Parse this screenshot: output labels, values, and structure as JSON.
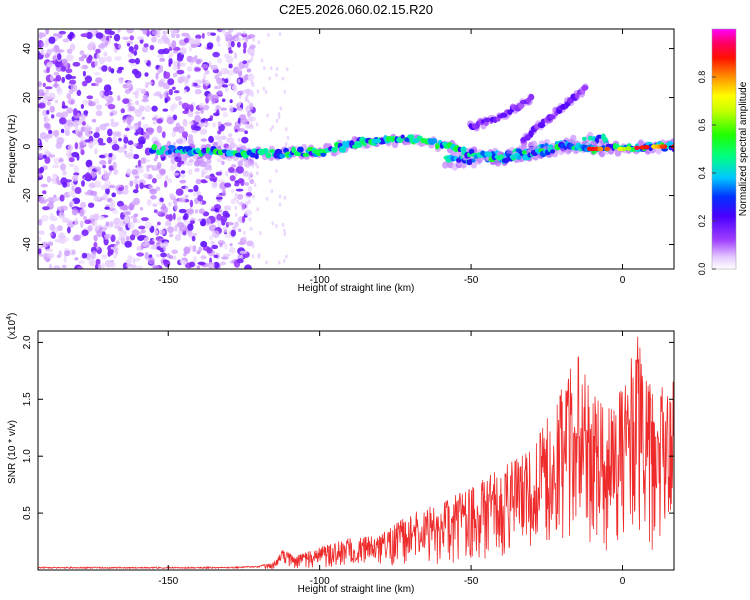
{
  "title": "C2E5.2026.060.02.15.R20",
  "chart_data": [
    {
      "type": "heatmap",
      "name": "spectrogram",
      "xlabel": "Height of straight line (km)",
      "ylabel": "Frequency (Hz)",
      "xlim": [
        -193,
        17
      ],
      "ylim": [
        -50,
        48
      ],
      "xticks": [
        -150,
        -100,
        -50,
        0
      ],
      "yticks": [
        -40,
        -20,
        0,
        20,
        40
      ],
      "xtick_labels": [
        "-150",
        "-100",
        "-50",
        "0"
      ],
      "ytick_labels": [
        "-40",
        "-20",
        "0",
        "20",
        "40"
      ],
      "features": {
        "noise_region_x": [
          -193,
          -130
        ],
        "main_trace": {
          "x": [
            -155,
            -140,
            -120,
            -100,
            -85,
            -70,
            -60,
            -50,
            -40,
            -30,
            -20,
            -10,
            0,
            10,
            17
          ],
          "y": [
            -1,
            -2,
            -3,
            -2,
            2,
            3,
            1,
            -3,
            -5,
            -3,
            0,
            -1,
            -1,
            0,
            0
          ]
        },
        "secondary_trace": {
          "x": [
            -58,
            -50,
            -40,
            -30,
            -20,
            -10,
            -5
          ],
          "y": [
            -6,
            -5,
            -4,
            -2,
            0,
            2,
            3
          ]
        },
        "upper_trace_1": {
          "x": [
            -50,
            -40,
            -35,
            -30
          ],
          "y": [
            8,
            12,
            16,
            20
          ]
        },
        "upper_trace_2": {
          "x": [
            -33,
            -28,
            -20,
            -12
          ],
          "y": [
            2,
            8,
            16,
            24
          ]
        }
      }
    },
    {
      "type": "colorbar",
      "name": "colorbar",
      "label": "Normalized spectral amplitude",
      "range": [
        0,
        1
      ],
      "ticks": [
        0.0,
        0.2,
        0.4,
        0.6,
        0.8
      ],
      "tick_labels": [
        "0.0",
        "0.2",
        "0.4",
        "0.6",
        "0.8"
      ],
      "colormap": [
        "#ffffff",
        "#e4c8ff",
        "#8800ff",
        "#0000ff",
        "#00e0ff",
        "#00ff00",
        "#ffff00",
        "#ff8800",
        "#ff0000",
        "#ff00ff"
      ]
    },
    {
      "type": "line",
      "name": "snr",
      "xlabel": "Height of straight line (km)",
      "ylabel": "SNR (10 * v/v)",
      "multiplier": "(x10",
      "multiplier_exp": "4",
      "multiplier_close": ")",
      "xlim": [
        -193,
        17
      ],
      "ylim": [
        0,
        2.1
      ],
      "xticks": [
        -150,
        -100,
        -50,
        0
      ],
      "yticks": [
        0.5,
        1.0,
        1.5,
        2.0
      ],
      "xtick_labels": [
        "-150",
        "-100",
        "-50",
        "0"
      ],
      "ytick_labels": [
        "0.5",
        "1.0",
        "1.5",
        "2.0"
      ],
      "color": "#ee2a2a",
      "envelope": {
        "x": [
          -193,
          -160,
          -130,
          -120,
          -115,
          -112,
          -108,
          -100,
          -90,
          -80,
          -70,
          -60,
          -50,
          -40,
          -30,
          -20,
          -15,
          -10,
          -5,
          0,
          5,
          10,
          15,
          17
        ],
        "y": [
          0.02,
          0.02,
          0.02,
          0.03,
          0.07,
          0.18,
          0.12,
          0.2,
          0.28,
          0.3,
          0.5,
          0.6,
          0.72,
          0.9,
          1.05,
          1.6,
          1.9,
          1.55,
          1.4,
          1.6,
          2.05,
          1.7,
          1.6,
          1.8
        ]
      }
    }
  ]
}
